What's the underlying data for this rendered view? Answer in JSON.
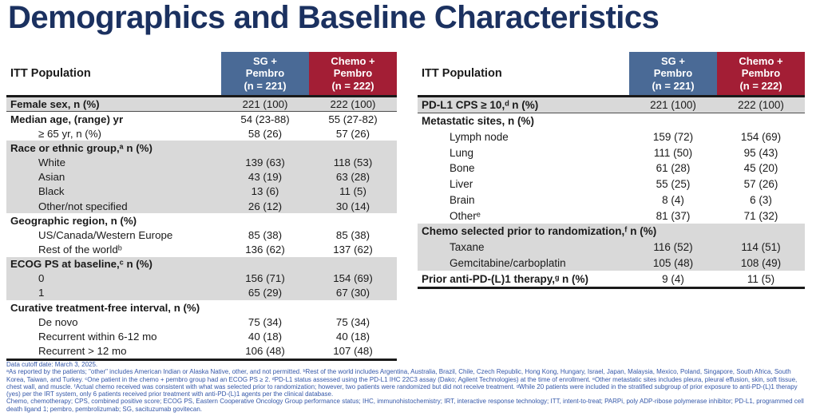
{
  "title": "Demographics and Baseline Characteristics",
  "colors": {
    "title_navy": "#1b3160",
    "header_blue": "#4a6a96",
    "header_red": "#a31e35",
    "row_gray": "#d9d9d9",
    "footnote_blue": "#3457a8"
  },
  "tables": {
    "left": {
      "corner_label": "ITT Population",
      "col_headers": [
        "SG +\nPembro\n(n = 221)",
        "Chemo +\nPembro\n(n = 222)"
      ],
      "rows": [
        {
          "label": "Female sex, n (%)",
          "values": [
            "221 (100)",
            "222 (100)"
          ],
          "bold": true,
          "indent": false,
          "shade": "gray",
          "divider": true
        },
        {
          "label": "Median age, (range) yr",
          "values": [
            "54 (23-88)",
            "55 (27-82)"
          ],
          "bold": true,
          "indent": false,
          "shade": "white"
        },
        {
          "label": "≥ 65 yr, n (%)",
          "values": [
            "58 (26)",
            "57 (26)"
          ],
          "bold": false,
          "indent": true,
          "shade": "white"
        },
        {
          "label": "Race or ethnic group,ᵃ n (%)",
          "values": [],
          "bold": true,
          "indent": false,
          "shade": "gray"
        },
        {
          "label": "White",
          "values": [
            "139 (63)",
            "118 (53)"
          ],
          "bold": false,
          "indent": true,
          "shade": "gray"
        },
        {
          "label": "Asian",
          "values": [
            "43 (19)",
            "63 (28)"
          ],
          "bold": false,
          "indent": true,
          "shade": "gray"
        },
        {
          "label": "Black",
          "values": [
            "13 (6)",
            "11 (5)"
          ],
          "bold": false,
          "indent": true,
          "shade": "gray"
        },
        {
          "label": "Other/not specified",
          "values": [
            "26 (12)",
            "30 (14)"
          ],
          "bold": false,
          "indent": true,
          "shade": "gray"
        },
        {
          "label": "Geographic region, n (%)",
          "values": [],
          "bold": true,
          "indent": false,
          "shade": "white"
        },
        {
          "label": "US/Canada/Western Europe",
          "values": [
            "85 (38)",
            "85 (38)"
          ],
          "bold": false,
          "indent": true,
          "shade": "white"
        },
        {
          "label": "Rest of the worldᵇ",
          "values": [
            "136 (62)",
            "137 (62)"
          ],
          "bold": false,
          "indent": true,
          "shade": "white"
        },
        {
          "label": "ECOG PS at baseline,ᶜ n (%)",
          "values": [],
          "bold": true,
          "indent": false,
          "shade": "gray"
        },
        {
          "label": "0",
          "values": [
            "156 (71)",
            "154 (69)"
          ],
          "bold": false,
          "indent": true,
          "shade": "gray"
        },
        {
          "label": "1",
          "values": [
            "65 (29)",
            "67 (30)"
          ],
          "bold": false,
          "indent": true,
          "shade": "gray"
        },
        {
          "label": "Curative treatment-free interval, n (%)",
          "values": [],
          "bold": true,
          "indent": false,
          "shade": "white"
        },
        {
          "label": "De novo",
          "values": [
            "75 (34)",
            "75 (34)"
          ],
          "bold": false,
          "indent": true,
          "shade": "white"
        },
        {
          "label": "Recurrent within 6-12 mo",
          "values": [
            "40 (18)",
            "40 (18)"
          ],
          "bold": false,
          "indent": true,
          "shade": "white"
        },
        {
          "label": "Recurrent > 12 mo",
          "values": [
            "106 (48)",
            "107 (48)"
          ],
          "bold": false,
          "indent": true,
          "shade": "white"
        }
      ]
    },
    "right": {
      "corner_label": "ITT Population",
      "col_headers": [
        "SG +\nPembro\n(n = 221)",
        "Chemo +\nPembro\n(n = 222)"
      ],
      "rows": [
        {
          "label": "PD-L1 CPS ≥ 10,ᵈ n (%)",
          "values": [
            "221 (100)",
            "222 (100)"
          ],
          "bold": true,
          "indent": false,
          "shade": "gray",
          "divider": true
        },
        {
          "label": "Metastatic sites, n (%)",
          "values": [],
          "bold": true,
          "indent": false,
          "shade": "white"
        },
        {
          "label": "Lymph node",
          "values": [
            "159 (72)",
            "154 (69)"
          ],
          "bold": false,
          "indent": true,
          "shade": "white"
        },
        {
          "label": "Lung",
          "values": [
            "111 (50)",
            "95 (43)"
          ],
          "bold": false,
          "indent": true,
          "shade": "white"
        },
        {
          "label": "Bone",
          "values": [
            "61 (28)",
            "45 (20)"
          ],
          "bold": false,
          "indent": true,
          "shade": "white"
        },
        {
          "label": "Liver",
          "values": [
            "55 (25)",
            "57 (26)"
          ],
          "bold": false,
          "indent": true,
          "shade": "white"
        },
        {
          "label": "Brain",
          "values": [
            "8 (4)",
            "6 (3)"
          ],
          "bold": false,
          "indent": true,
          "shade": "white"
        },
        {
          "label": "Otherᵉ",
          "values": [
            "81 (37)",
            "71 (32)"
          ],
          "bold": false,
          "indent": true,
          "shade": "white"
        },
        {
          "label": "Chemo selected prior to randomization,ᶠ n (%)",
          "values": [],
          "bold": true,
          "indent": false,
          "shade": "gray"
        },
        {
          "label": "Taxane",
          "values": [
            "116 (52)",
            "114 (51)"
          ],
          "bold": false,
          "indent": true,
          "shade": "gray"
        },
        {
          "label": "Gemcitabine/carboplatin",
          "values": [
            "105 (48)",
            "108 (49)"
          ],
          "bold": false,
          "indent": true,
          "shade": "gray"
        },
        {
          "label": "Prior anti-PD-(L)1 therapy,ᵍ n (%)",
          "values": [
            "9 (4)",
            "11 (5)"
          ],
          "bold": true,
          "indent": false,
          "shade": "white"
        }
      ]
    }
  },
  "footnotes": {
    "cutoff": "Data cutoff date: March 3, 2025.",
    "notes": "ᵃAs reported by the patients; \"other\" includes American Indian or Alaska Native, other, and not permitted. ᵇRest of the world includes Argentina, Australia, Brazil, Chile, Czech Republic, Hong Kong, Hungary, Israel, Japan, Malaysia, Mexico, Poland, Singapore, South Africa, South Korea, Taiwan, and Turkey. ᶜOne patient in the chemo + pembro group had an ECOG PS ≥ 2. ᵈPD-L1 status assessed using the PD-L1 IHC 22C3 assay (Dako; Agilent Technologies) at the time of enrollment. ᵉOther metastatic sites includes pleura, pleural effusion, skin, soft tissue, chest wall, and muscle. ᶠActual chemo received was consistent with what was selected prior to randomization; however, two patients were randomized but did not receive treatment. ᵍWhile 20 patients were included in the stratified subgroup of prior exposure to anti-PD-(L)1 therapy (yes) per the IRT system, only 6 patients received prior treatment with anti-PD-(L)1 agents per the clinical database.",
    "abbreviations": "Chemo, chemotherapy; CPS, combined positive score; ECOG PS, Eastern Cooperative Oncology Group performance status; IHC, immunohistochemistry; IRT, interactive response technology; ITT, intent-to-treat; PARPi, poly ADP-ribose polymerase inhibitor; PD-L1, programmed cell death ligand 1; pembro, pembrolizumab; SG, sacituzumab govitecan."
  }
}
